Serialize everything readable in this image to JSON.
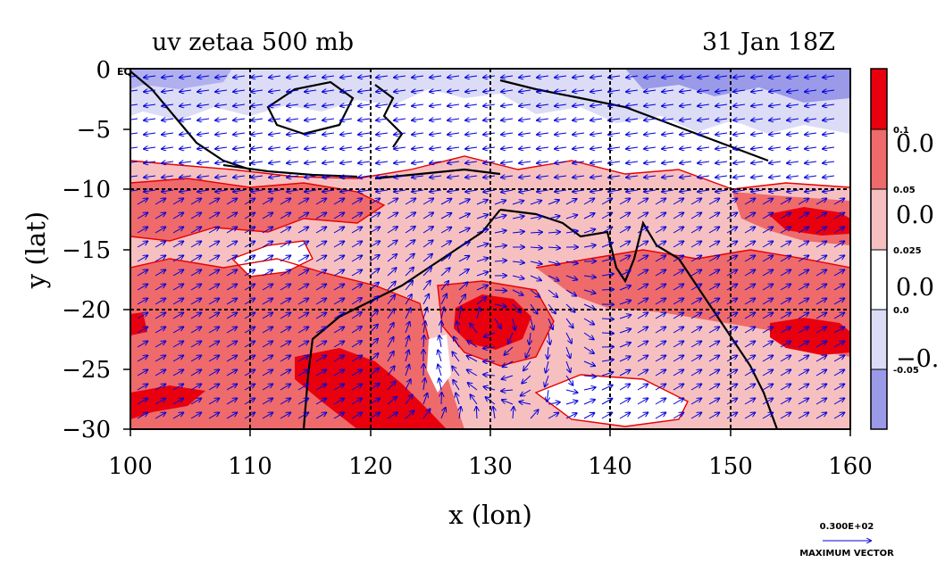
{
  "chart_data": {
    "type": "heatmap",
    "title_left": "uv zetaa 500 mb",
    "title_right": "31 Jan 18Z",
    "xlabel": "x (lon)",
    "ylabel": "y (lat)",
    "xlim": [
      100,
      160
    ],
    "ylim": [
      -30,
      0
    ],
    "x_ticks": [
      "100",
      "110",
      "120",
      "130",
      "140",
      "150",
      "160"
    ],
    "y_ticks": [
      "0",
      "−5",
      "−10",
      "−15",
      "−20",
      "−25",
      "−30"
    ],
    "y_top_suffix": "EQ",
    "grid": true,
    "colorbar": {
      "levels": [
        "0.1",
        "0.05",
        "0.025",
        "0.0",
        "-0.05"
      ],
      "big_labels": [
        "0.0",
        "0.0",
        "0.0",
        "−0."
      ],
      "colors": [
        "#e8000f",
        "#ef6a6a",
        "#f7c0c0",
        "#ffffff",
        "#dcdcf6",
        "#9a9ae8"
      ]
    },
    "vector_label": "0.300E+02",
    "vector_caption": "MAXIMUM VECTOR",
    "colors": {
      "vector": "#0000dd",
      "contour": "#e80000",
      "coast": "#000000"
    }
  }
}
